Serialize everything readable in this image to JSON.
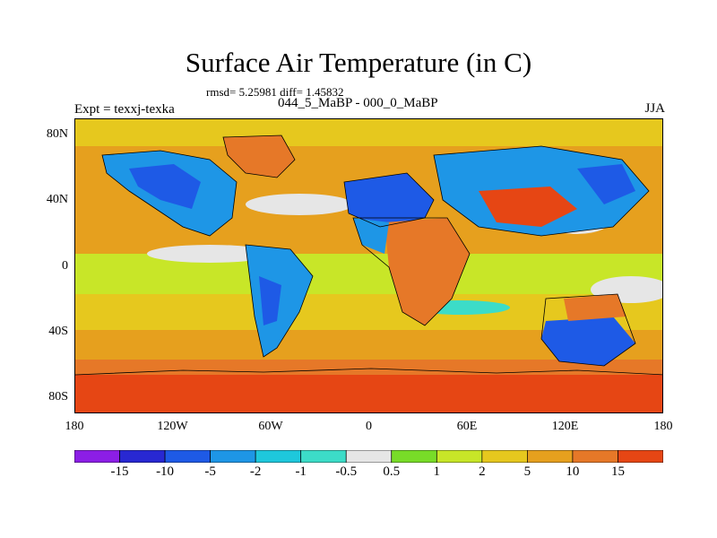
{
  "header": {
    "title": "Surface Air Temperature (in C)",
    "stats": "rmsd= 5.25981 diff= 1.45832",
    "experiment": "Expt = texxj-texka",
    "period": "044_5_MaBP - 000_0_MaBP",
    "season": "JJA"
  },
  "axes": {
    "lat_ticks": [
      {
        "value": 80,
        "label": "80N"
      },
      {
        "value": 40,
        "label": "40N"
      },
      {
        "value": 0,
        "label": "0"
      },
      {
        "value": -40,
        "label": "40S"
      },
      {
        "value": -80,
        "label": "80S"
      }
    ],
    "lon_ticks": [
      {
        "value": -180,
        "label": "180"
      },
      {
        "value": -120,
        "label": "120W"
      },
      {
        "value": -60,
        "label": "60W"
      },
      {
        "value": 0,
        "label": "0"
      },
      {
        "value": 60,
        "label": "60E"
      },
      {
        "value": 120,
        "label": "120E"
      },
      {
        "value": 180,
        "label": "180"
      }
    ],
    "lon_range": [
      -180,
      180
    ],
    "lat_range": [
      -90,
      90
    ]
  },
  "colorbar": {
    "colors": [
      "#8c1ee6",
      "#2828d2",
      "#1e5ae6",
      "#1e96e6",
      "#1ec8dc",
      "#3cdcc8",
      "#e6e6e6",
      "#78dc28",
      "#c8e628",
      "#e6c81e",
      "#e6a01e",
      "#e67828",
      "#e64614"
    ],
    "labels": [
      "-15",
      "-10",
      "-5",
      "-2",
      "-1",
      "-0.5",
      "0.5",
      "1",
      "2",
      "5",
      "10",
      "15"
    ]
  }
}
